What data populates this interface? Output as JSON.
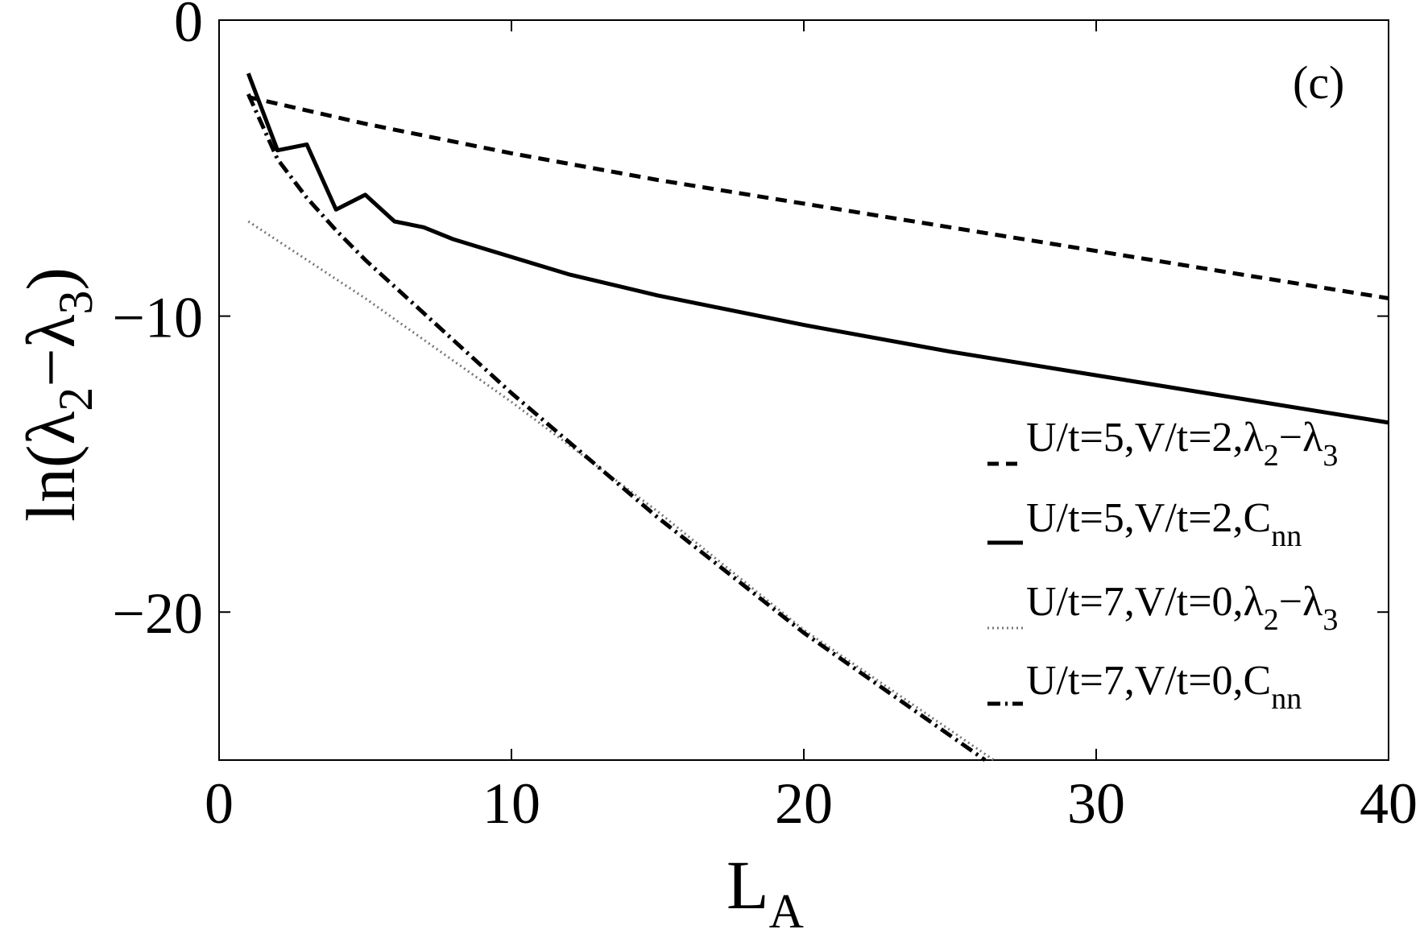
{
  "chart_data": {
    "type": "line",
    "panel_label": "(c)",
    "xlabel": {
      "main": "L",
      "sub": "A"
    },
    "ylabel": {
      "prefix": "ln(λ",
      "sub1": "2",
      "mid": "−λ",
      "sub2": "3",
      "suffix": ")"
    },
    "xlim": [
      0,
      40
    ],
    "ylim": [
      -25,
      0
    ],
    "xticks": [
      0,
      10,
      20,
      30,
      40
    ],
    "xtick_labels": [
      "0",
      "10",
      "20",
      "30",
      "40"
    ],
    "yticks": [
      0,
      -10,
      -20
    ],
    "ytick_labels": [
      "0",
      "−10",
      "−20"
    ],
    "grid": false,
    "legend_position": "lower-right",
    "series": [
      {
        "name": "U/t=5,V/t=2,λ2−λ3",
        "legend": {
          "main": "U/t=5,V/t=2,λ",
          "sub1": "2",
          "mid": "−λ",
          "sub2": "3"
        },
        "style": "dashed",
        "color": "#000000",
        "width": 5,
        "x": [
          1,
          5,
          10,
          15,
          20,
          25,
          30,
          35,
          40
        ],
        "y": [
          -2.6,
          -3.5,
          -4.5,
          -5.4,
          -6.2,
          -7.0,
          -7.8,
          -8.6,
          -9.4
        ]
      },
      {
        "name": "U/t=5,V/t=2,Cnn",
        "legend": {
          "main": "U/t=5,V/t=2,C",
          "sub1": "nn",
          "mid": "",
          "sub2": ""
        },
        "style": "solid",
        "color": "#000000",
        "width": 5,
        "x": [
          1,
          2,
          3,
          4,
          5,
          6,
          7,
          8,
          9,
          10,
          12,
          15,
          20,
          25,
          30,
          35,
          40
        ],
        "y": [
          -1.8,
          -4.4,
          -4.2,
          -6.4,
          -5.9,
          -6.8,
          -7.0,
          -7.4,
          -7.7,
          -8.0,
          -8.6,
          -9.3,
          -10.3,
          -11.2,
          -12.0,
          -12.8,
          -13.6
        ]
      },
      {
        "name": "U/t=7,V/t=0,λ2−λ3",
        "legend": {
          "main": "U/t=7,V/t=0,λ",
          "sub1": "2",
          "mid": "−λ",
          "sub2": "3"
        },
        "style": "dotted",
        "color": "#777777",
        "width": 3,
        "x": [
          1,
          5,
          10,
          15,
          20,
          26.5
        ],
        "y": [
          -6.8,
          -9.4,
          -12.9,
          -16.6,
          -20.6,
          -25
        ]
      },
      {
        "name": "U/t=7,V/t=0,Cnn",
        "legend": {
          "main": "U/t=7,V/t=0,C",
          "sub1": "nn",
          "mid": "",
          "sub2": ""
        },
        "style": "dashdot",
        "color": "#000000",
        "width": 5,
        "x": [
          1,
          2,
          3,
          4,
          5,
          7,
          10,
          15,
          20,
          26.2
        ],
        "y": [
          -2.5,
          -4.7,
          -6.0,
          -7.1,
          -8.1,
          -9.9,
          -12.6,
          -16.8,
          -20.7,
          -25
        ]
      }
    ]
  }
}
